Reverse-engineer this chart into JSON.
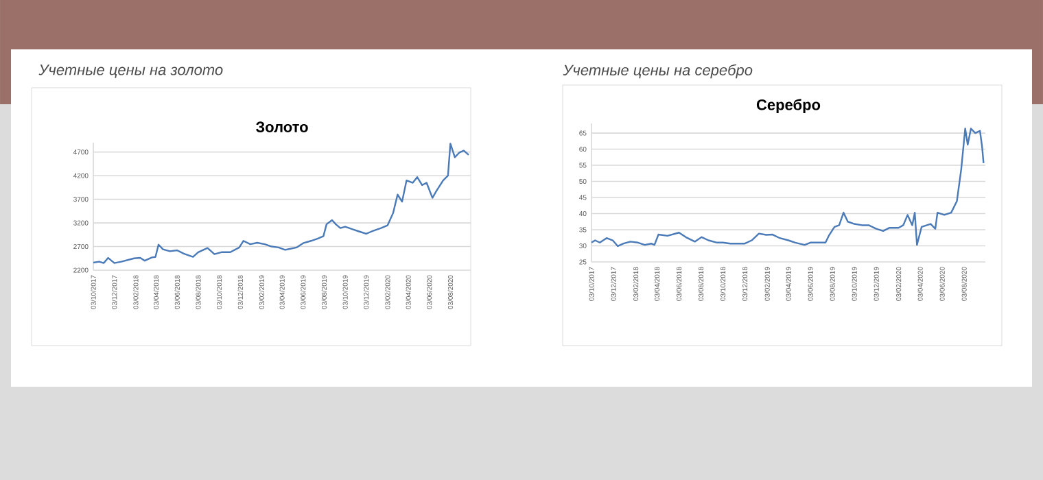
{
  "chart_data": [
    {
      "type": "line",
      "title": "Золото",
      "annotations": [
        "Учетные цены на золото"
      ],
      "color": "#4a7ab8",
      "grid": "y",
      "x": [
        "2017-10-03",
        "2017-10-20",
        "2017-11-02",
        "2017-11-15",
        "2017-12-03",
        "2017-12-23",
        "2018-01-29",
        "2018-02-16",
        "2018-03-01",
        "2018-03-22",
        "2018-04-01",
        "2018-04-10",
        "2018-04-23",
        "2018-05-13",
        "2018-06-03",
        "2018-06-22",
        "2018-07-19",
        "2018-08-03",
        "2018-08-30",
        "2018-09-19",
        "2018-10-09",
        "2018-11-04",
        "2018-11-30",
        "2018-12-12",
        "2019-01-01",
        "2019-01-21",
        "2019-02-12",
        "2019-03-04",
        "2019-03-24",
        "2019-04-12",
        "2019-04-25",
        "2019-05-15",
        "2019-06-03",
        "2019-06-26",
        "2019-07-16",
        "2019-08-01",
        "2019-08-10",
        "2019-08-26",
        "2019-09-06",
        "2019-09-19",
        "2019-10-03",
        "2019-10-23",
        "2019-11-12",
        "2019-12-03",
        "2019-12-19",
        "2020-01-15",
        "2020-02-03",
        "2020-02-19",
        "2020-03-03",
        "2020-03-16",
        "2020-03-29",
        "2020-04-16",
        "2020-04-29",
        "2020-05-13",
        "2020-05-26",
        "2020-06-12",
        "2020-06-23",
        "2020-07-13",
        "2020-07-27",
        "2020-08-03",
        "2020-08-16",
        "2020-08-29",
        "2020-09-11",
        "2020-09-25"
      ],
      "values": [
        2360,
        2380,
        2350,
        2460,
        2350,
        2380,
        2450,
        2460,
        2400,
        2470,
        2480,
        2740,
        2640,
        2600,
        2620,
        2550,
        2480,
        2580,
        2670,
        2540,
        2580,
        2580,
        2680,
        2820,
        2750,
        2780,
        2750,
        2700,
        2680,
        2630,
        2650,
        2680,
        2770,
        2820,
        2870,
        2920,
        3170,
        3260,
        3170,
        3090,
        3120,
        3070,
        3020,
        2970,
        3020,
        3090,
        3150,
        3410,
        3800,
        3650,
        4100,
        4050,
        4170,
        4000,
        4050,
        3730,
        3870,
        4100,
        4200,
        4880,
        4590,
        4690,
        4730,
        4640
      ],
      "xlim": [
        "2017-10-03",
        "2020-10-01"
      ],
      "ylim": [
        2200,
        4900
      ],
      "yticks": [
        2200,
        2700,
        3200,
        3700,
        4200,
        4700
      ],
      "xticks": [
        {
          "value": "2017-10-03",
          "label": "03/10/2017"
        },
        {
          "value": "2017-12-03",
          "label": "03/12/2017"
        },
        {
          "value": "2018-02-03",
          "label": "03/02/2018"
        },
        {
          "value": "2018-04-03",
          "label": "03/04/2018"
        },
        {
          "value": "2018-06-03",
          "label": "03/06/2018"
        },
        {
          "value": "2018-08-03",
          "label": "03/08/2018"
        },
        {
          "value": "2018-10-03",
          "label": "03/10/2018"
        },
        {
          "value": "2018-12-03",
          "label": "03/12/2018"
        },
        {
          "value": "2019-02-03",
          "label": "03/02/2019"
        },
        {
          "value": "2019-04-03",
          "label": "03/04/2019"
        },
        {
          "value": "2019-06-03",
          "label": "03/06/2019"
        },
        {
          "value": "2019-08-03",
          "label": "03/08/2019"
        },
        {
          "value": "2019-10-03",
          "label": "03/10/2019"
        },
        {
          "value": "2019-12-03",
          "label": "03/12/2019"
        },
        {
          "value": "2020-02-03",
          "label": "03/02/2020"
        },
        {
          "value": "2020-04-03",
          "label": "03/04/2020"
        },
        {
          "value": "2020-06-03",
          "label": "03/06/2020"
        },
        {
          "value": "2020-08-03",
          "label": "03/08/2020"
        }
      ]
    },
    {
      "type": "line",
      "title": "Серебро",
      "annotations": [
        "Учетные цены на серебро"
      ],
      "color": "#4a7ab8",
      "grid": "y",
      "x": [
        "2017-10-03",
        "2017-10-13",
        "2017-10-26",
        "2017-11-14",
        "2017-12-01",
        "2017-12-15",
        "2017-12-31",
        "2018-01-19",
        "2018-02-09",
        "2018-02-28",
        "2018-03-18",
        "2018-03-27",
        "2018-04-07",
        "2018-05-02",
        "2018-06-03",
        "2018-06-22",
        "2018-07-17",
        "2018-08-05",
        "2018-08-24",
        "2018-09-17",
        "2018-10-03",
        "2018-10-24",
        "2018-12-03",
        "2018-12-22",
        "2019-01-11",
        "2019-01-31",
        "2019-02-18",
        "2019-03-10",
        "2019-04-03",
        "2019-04-22",
        "2019-05-18",
        "2019-06-03",
        "2019-06-26",
        "2019-07-15",
        "2019-07-24",
        "2019-08-09",
        "2019-08-22",
        "2019-09-03",
        "2019-09-15",
        "2019-10-03",
        "2019-10-24",
        "2019-11-12",
        "2019-12-03",
        "2019-12-22",
        "2020-01-09",
        "2020-02-03",
        "2020-02-16",
        "2020-02-28",
        "2020-03-12",
        "2020-03-19",
        "2020-03-25",
        "2020-04-07",
        "2020-05-02",
        "2020-05-15",
        "2020-05-21",
        "2020-06-09",
        "2020-06-28",
        "2020-07-14",
        "2020-07-26",
        "2020-08-06",
        "2020-08-13",
        "2020-08-22",
        "2020-09-03",
        "2020-09-16",
        "2020-09-22",
        "2020-09-26"
      ],
      "values": [
        31.0,
        31.7,
        31.0,
        32.4,
        31.7,
        29.9,
        30.7,
        31.3,
        31.0,
        30.3,
        30.7,
        30.3,
        33.5,
        33.1,
        34.1,
        32.7,
        31.3,
        32.7,
        31.7,
        31.0,
        31.0,
        30.7,
        30.7,
        31.7,
        33.8,
        33.4,
        33.5,
        32.4,
        31.7,
        31.0,
        30.3,
        31.0,
        31.0,
        31.0,
        33.1,
        35.9,
        36.4,
        40.3,
        37.5,
        36.8,
        36.4,
        36.4,
        35.3,
        34.6,
        35.6,
        35.6,
        36.4,
        39.6,
        36.4,
        40.3,
        30.3,
        35.9,
        36.8,
        35.3,
        40.3,
        39.6,
        40.3,
        43.9,
        53.8,
        66.4,
        61.4,
        66.4,
        65.0,
        65.7,
        60.7,
        55.7
      ],
      "xlim": [
        "2017-10-03",
        "2020-10-01"
      ],
      "ylim": [
        25,
        68
      ],
      "yticks": [
        25,
        30,
        35,
        40,
        45,
        50,
        55,
        60,
        65
      ],
      "xticks": [
        {
          "value": "2017-10-03",
          "label": "03/10/2017"
        },
        {
          "value": "2017-12-03",
          "label": "03/12/2017"
        },
        {
          "value": "2018-02-03",
          "label": "03/02/2018"
        },
        {
          "value": "2018-04-03",
          "label": "03/04/2018"
        },
        {
          "value": "2018-06-03",
          "label": "03/06/2018"
        },
        {
          "value": "2018-08-03",
          "label": "03/08/2018"
        },
        {
          "value": "2018-10-03",
          "label": "03/10/2018"
        },
        {
          "value": "2018-12-03",
          "label": "03/12/2018"
        },
        {
          "value": "2019-02-03",
          "label": "03/02/2019"
        },
        {
          "value": "2019-04-03",
          "label": "03/04/2019"
        },
        {
          "value": "2019-06-03",
          "label": "03/06/2019"
        },
        {
          "value": "2019-08-03",
          "label": "03/08/2019"
        },
        {
          "value": "2019-10-03",
          "label": "03/10/2019"
        },
        {
          "value": "2019-12-03",
          "label": "03/12/2019"
        },
        {
          "value": "2020-02-03",
          "label": "03/02/2020"
        },
        {
          "value": "2020-04-03",
          "label": "03/04/2020"
        },
        {
          "value": "2020-06-03",
          "label": "03/06/2020"
        },
        {
          "value": "2020-08-03",
          "label": "03/08/2020"
        }
      ]
    }
  ]
}
